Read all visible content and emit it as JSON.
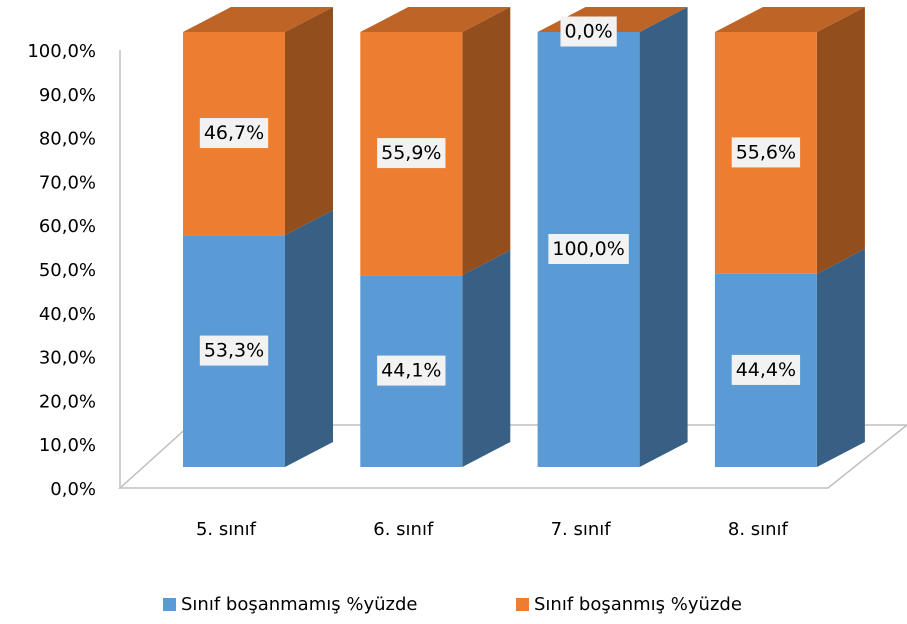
{
  "chart_data": {
    "type": "bar",
    "stacked": true,
    "categories": [
      "5. sınıf",
      "6. sınıf",
      "7. sınıf",
      "8. sınıf"
    ],
    "series": [
      {
        "name": "Sınıf boşanmamış %yüzde",
        "color": "#5b9bd5",
        "values": [
          53.3,
          44.1,
          100,
          44.4
        ],
        "value_labels": [
          "53,3%",
          "44,1%",
          "100,0%",
          "44,4%"
        ]
      },
      {
        "name": "Sınıf boşanmış %yüzde",
        "color": "#ed7d31",
        "values": [
          46.7,
          55.9,
          0,
          55.6
        ],
        "value_labels": [
          "46,7%",
          "55,9%",
          "0,0%",
          "55,6%"
        ]
      }
    ],
    "ylim": [
      0,
      100
    ],
    "yticks": [
      {
        "value": 0,
        "label": "0,0%"
      },
      {
        "value": 10,
        "label": "10,0%"
      },
      {
        "value": 20,
        "label": "20,0%"
      },
      {
        "value": 30,
        "label": "30,0%"
      },
      {
        "value": 40,
        "label": "40,0%"
      },
      {
        "value": 50,
        "label": "50,0%"
      },
      {
        "value": 60,
        "label": "60,0%"
      },
      {
        "value": 70,
        "label": "70,0%"
      },
      {
        "value": 80,
        "label": "80,0%"
      },
      {
        "value": 90,
        "label": "90,0%"
      },
      {
        "value": 100,
        "label": "100,0%"
      }
    ],
    "legend": "bottom"
  }
}
